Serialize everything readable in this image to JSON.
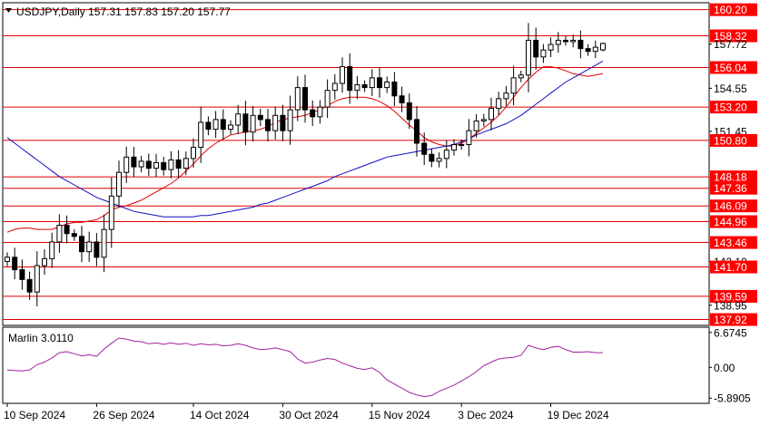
{
  "header": {
    "symbol_info": "USDJPY,Daily  157.31 157.83 157.20 157.77"
  },
  "indicator": {
    "name": "Marlin 3.0110"
  },
  "colors": {
    "bg": "#ffffff",
    "axis": "#000000",
    "level_line": "#e00000",
    "level_badge": "#ff0000",
    "badge_text": "#ffffff",
    "ma_fast": "#e00000",
    "ma_slow": "#1010c0",
    "oscillator": "#a020a0",
    "candle": "#000000"
  },
  "chart_data": [
    {
      "type": "candlestick",
      "title": "USDJPY,Daily",
      "ylim": [
        137.5,
        160.7
      ],
      "y_ticks": [
        "160.20",
        "158.32",
        "157.72",
        "156.04",
        "154.55",
        "153.20",
        "151.45",
        "150.80",
        "148.18",
        "147.36",
        "146.09",
        "144.96",
        "143.46",
        "142.10",
        "141.70",
        "139.59",
        "138.95",
        "137.92"
      ],
      "highlighted_levels": [
        160.2,
        158.32,
        156.04,
        153.2,
        150.8,
        148.18,
        147.36,
        146.09,
        144.96,
        143.46,
        141.7,
        139.59,
        137.92
      ],
      "plain_ticks": [
        157.72,
        154.55,
        151.45,
        142.1,
        138.95
      ],
      "x_labels": [
        "10 Sep 2024",
        "26 Sep 2024",
        "14 Oct 2024",
        "30 Oct 2024",
        "15 Nov 2024",
        "3 Dec 2024",
        "19 Dec 2024"
      ],
      "x_label_bar_index": [
        0,
        12,
        25,
        37,
        49,
        61,
        73
      ],
      "last_candle": {
        "open": 157.31,
        "high": 157.83,
        "low": 157.2,
        "close": 157.77
      },
      "closes": [
        142.4,
        141.5,
        140.8,
        139.9,
        141.8,
        142.3,
        143.5,
        144.7,
        144.1,
        143.9,
        142.8,
        143.5,
        142.4,
        144.4,
        146.8,
        148.5,
        149.6,
        148.9,
        149.3,
        148.8,
        149.2,
        148.7,
        149.4,
        148.8,
        149.5,
        150.3,
        152.1,
        151.6,
        152.3,
        151.6,
        151.9,
        152.7,
        151.4,
        152.6,
        152.3,
        151.5,
        152.6,
        151.5,
        153.0,
        154.6,
        153.0,
        152.5,
        153.2,
        154.4,
        154.9,
        156.1,
        154.4,
        154.8,
        154.6,
        155.3,
        154.6,
        155.0,
        154.0,
        153.5,
        152.3,
        150.6,
        149.8,
        149.3,
        149.5,
        150.1,
        150.5,
        150.5,
        151.5,
        152.2,
        152.3,
        153.1,
        153.8,
        154.2,
        155.3,
        155.5,
        158.0,
        156.8,
        157.3,
        157.7,
        158.0,
        157.9,
        158.0,
        157.4,
        157.2,
        157.5,
        157.9
      ],
      "series": [
        {
          "name": "",
          "kind": "moving_average",
          "color": "#e00000",
          "values": [
            144.2,
            144.4,
            144.5,
            144.5,
            144.4,
            144.4,
            144.4,
            144.6,
            144.8,
            144.9,
            144.9,
            145.0,
            145.1,
            145.4,
            145.8,
            146.0,
            146.1,
            146.3,
            146.5,
            146.8,
            147.1,
            147.4,
            147.7,
            148.1,
            148.6,
            149.1,
            149.7,
            150.2,
            150.6,
            150.9,
            151.2,
            151.3,
            151.4,
            151.5,
            151.6,
            151.8,
            152.1,
            152.3,
            152.4,
            152.5,
            152.6,
            152.8,
            153.0,
            153.3,
            153.6,
            153.8,
            153.9,
            153.9,
            153.9,
            153.8,
            153.6,
            153.3,
            152.9,
            152.4,
            151.9,
            151.5,
            151.0,
            150.7,
            150.5,
            150.4,
            150.4,
            150.6,
            150.9,
            151.3,
            151.7,
            152.1,
            152.6,
            153.2,
            153.9,
            154.6,
            155.2,
            155.7,
            156.1,
            156.1,
            156.0,
            155.8,
            155.6,
            155.5,
            155.4,
            155.5,
            155.6
          ]
        },
        {
          "name": "",
          "kind": "moving_average",
          "color": "#1010c0",
          "values": [
            151.0,
            150.6,
            150.2,
            149.8,
            149.4,
            149.0,
            148.6,
            148.2,
            147.9,
            147.6,
            147.3,
            147.0,
            146.7,
            146.5,
            146.3,
            146.1,
            145.9,
            145.7,
            145.6,
            145.5,
            145.4,
            145.3,
            145.3,
            145.3,
            145.3,
            145.3,
            145.4,
            145.4,
            145.5,
            145.6,
            145.7,
            145.8,
            145.9,
            146.0,
            146.2,
            146.3,
            146.5,
            146.7,
            146.9,
            147.1,
            147.3,
            147.5,
            147.7,
            147.9,
            148.2,
            148.4,
            148.6,
            148.8,
            149.0,
            149.2,
            149.4,
            149.6,
            149.7,
            149.8,
            149.9,
            150.0,
            150.1,
            150.2,
            150.3,
            150.4,
            150.5,
            150.7,
            150.9,
            151.2,
            151.4,
            151.6,
            151.8,
            152.0,
            152.3,
            152.6,
            153.0,
            153.4,
            153.8,
            154.2,
            154.6,
            155.0,
            155.3,
            155.6,
            155.9,
            156.2,
            156.5
          ]
        }
      ]
    },
    {
      "type": "line",
      "title": "Marlin 3.0110",
      "ylim": [
        -6.8905,
        7.6745
      ],
      "y_ticks": [
        "6.6745",
        "0.00",
        "-5.8905"
      ],
      "series": [
        {
          "name": "",
          "color": "#a020a0",
          "values": [
            -0.5,
            -0.6,
            -0.7,
            -0.5,
            0.5,
            1.0,
            1.8,
            2.8,
            3.0,
            2.6,
            2.2,
            2.4,
            2.1,
            3.5,
            4.6,
            5.6,
            5.4,
            5.0,
            4.9,
            4.5,
            4.7,
            4.4,
            4.7,
            4.4,
            4.6,
            4.2,
            4.5,
            4.3,
            4.4,
            4.1,
            4.2,
            4.5,
            4.2,
            3.7,
            3.4,
            3.5,
            3.7,
            3.4,
            3.0,
            1.6,
            0.8,
            1.0,
            1.4,
            1.7,
            1.5,
            0.8,
            0.3,
            -0.2,
            -0.4,
            -0.1,
            -1.0,
            -2.4,
            -3.2,
            -4.0,
            -4.8,
            -5.3,
            -5.6,
            -5.4,
            -4.6,
            -4.0,
            -3.4,
            -2.6,
            -1.8,
            -0.8,
            0.3,
            1.0,
            1.6,
            1.8,
            1.9,
            2.3,
            4.2,
            3.7,
            3.4,
            3.8,
            4.0,
            3.4,
            2.9,
            2.9,
            3.0,
            2.8,
            2.8
          ]
        }
      ]
    }
  ]
}
